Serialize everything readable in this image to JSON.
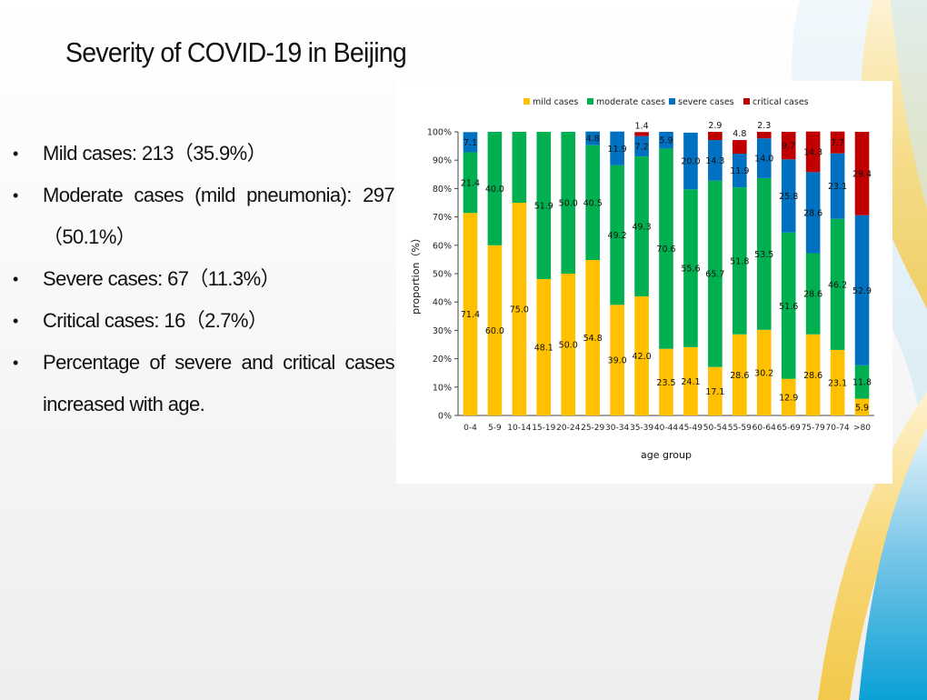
{
  "slide": {
    "title": "Severity of COVID-19 in Beijing",
    "bullets": [
      "Mild cases: 213（35.9%）",
      "Moderate cases (mild pneumonia): 297 （50.1%）",
      "Severe cases: 67（11.3%）",
      "Critical cases: 16（2.7%）",
      "Percentage of severe and critical cases increased with age."
    ]
  },
  "colors": {
    "mild": "#ffc000",
    "moderate": "#00b050",
    "severe": "#0070c0",
    "critical": "#c00000",
    "deco_yellow": "#f6d46a",
    "deco_blue": "#1fa3d4"
  },
  "chart_data": {
    "type": "bar",
    "stacked": true,
    "ylabel": "proportion（%）",
    "xlabel": "age group",
    "ylim": [
      0,
      100
    ],
    "yticks": [
      "0%",
      "10%",
      "20%",
      "30%",
      "40%",
      "50%",
      "60%",
      "70%",
      "80%",
      "90%",
      "100%"
    ],
    "legend_position": "top",
    "categories": [
      "0-4",
      "5-9",
      "10-14",
      "15-19",
      "20-24",
      "25-29",
      "30-34",
      "35-39",
      "40-44",
      "45-49",
      "50-54",
      "55-59",
      "60-64",
      "65-69",
      "75-79",
      "70-74",
      ">80"
    ],
    "series": [
      {
        "name": "mild cases",
        "color_key": "mild",
        "values": [
          71.4,
          60.0,
          75.0,
          48.1,
          50.0,
          54.8,
          39.0,
          42.0,
          23.5,
          24.1,
          17.1,
          28.6,
          30.2,
          12.9,
          28.6,
          23.1,
          5.9
        ]
      },
      {
        "name": "moderate cases",
        "color_key": "moderate",
        "values": [
          21.4,
          40.0,
          25.0,
          51.9,
          50.0,
          40.5,
          49.2,
          49.3,
          70.6,
          55.6,
          65.7,
          51.8,
          53.5,
          51.6,
          28.6,
          46.2,
          11.8
        ]
      },
      {
        "name": "severe cases",
        "color_key": "severe",
        "values": [
          7.1,
          0,
          0,
          0,
          0,
          4.8,
          11.9,
          7.2,
          5.9,
          20.0,
          14.3,
          11.9,
          14.0,
          25.8,
          28.6,
          23.1,
          52.9
        ]
      },
      {
        "name": "critical cases",
        "color_key": "critical",
        "values": [
          0,
          0,
          0,
          0,
          0,
          0,
          0,
          1.4,
          0,
          0,
          2.9,
          4.8,
          2.3,
          9.7,
          14.3,
          7.7,
          29.4
        ]
      }
    ],
    "data_labels": [
      [
        "71.4",
        "60.0",
        "75.0",
        "48.1",
        "50.0",
        "54.8",
        "39.0",
        "42.0",
        "23.5",
        "24.1",
        "17.1",
        "28.6",
        "30.2",
        "12.9",
        "28.6",
        "23.1",
        "5.9"
      ],
      [
        "21.4",
        "40.0",
        "",
        "51.9",
        "50.0",
        "40.5",
        "49.2",
        "49.3",
        "70.6",
        "55.6",
        "65.7",
        "51.8",
        "53.5",
        "51.6",
        "28.6",
        "46.2",
        "11.8"
      ],
      [
        "7.1",
        "",
        "",
        "",
        "",
        "4.8",
        "11.9",
        "7.2",
        "5.9",
        "20.0",
        "14.3",
        "11.9",
        "14.0",
        "25.8",
        "28.6",
        "23.1",
        "52.9"
      ],
      [
        "",
        "",
        "",
        "",
        "",
        "",
        "",
        "1.4",
        "",
        "",
        "2.9",
        "4.8",
        "2.3",
        "9.7",
        "14.3",
        "7.7",
        "29.4"
      ]
    ]
  }
}
